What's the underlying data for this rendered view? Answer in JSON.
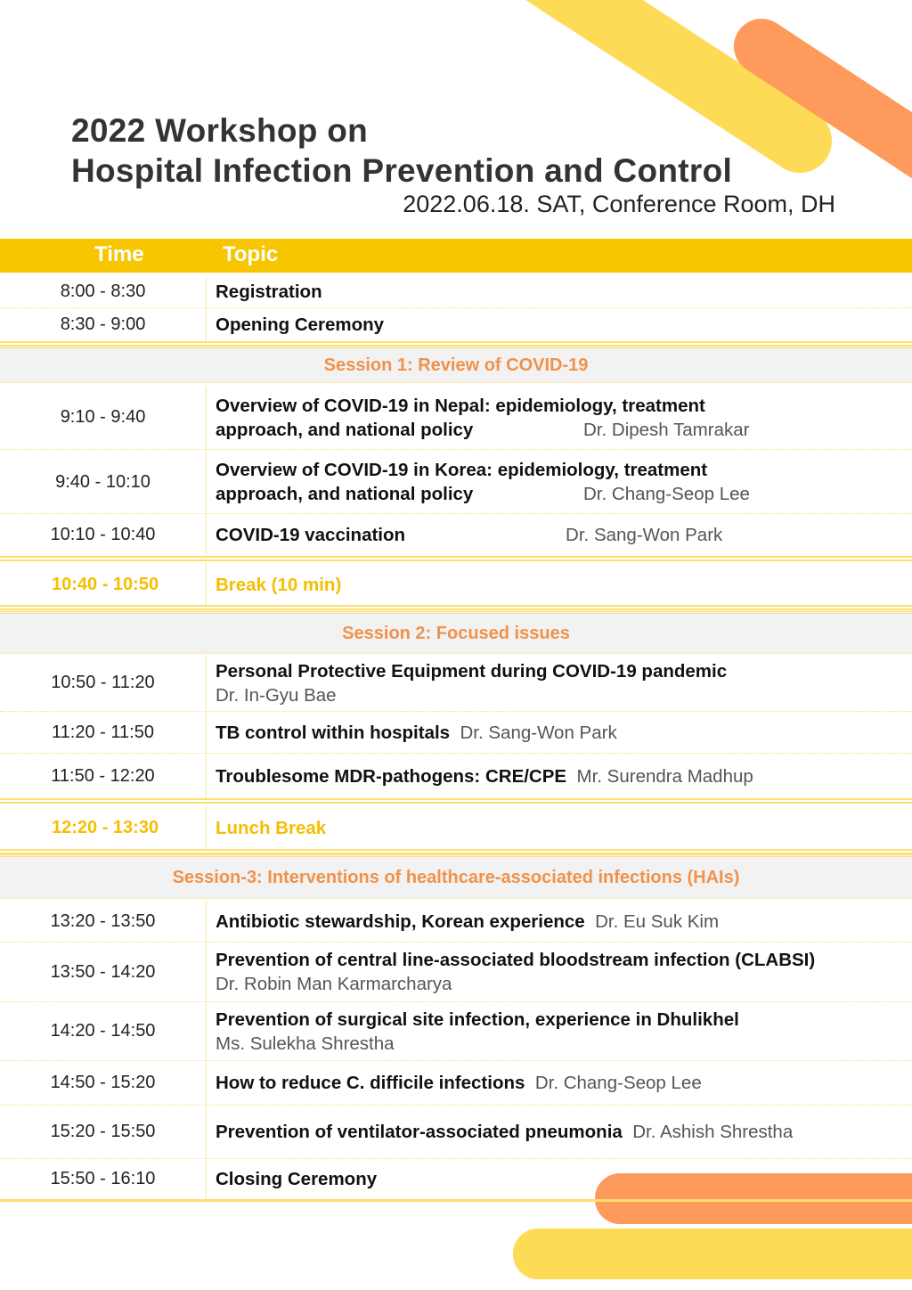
{
  "title": {
    "line1": "2022 Workshop on",
    "line2": "Hospital Infection Prevention and Control",
    "subtitle": "2022.06.18. SAT, Conference Room, DH"
  },
  "header": {
    "time": "Time",
    "topic": "Topic"
  },
  "colors": {
    "header": "#F7C600",
    "session_text": "#F0924A",
    "break_text": "#F5BE00",
    "deco_yellow": "#FEDB56",
    "deco_orange": "#FE9A5C"
  },
  "rows": [
    {
      "time": "8:00 - 8:30",
      "title": "Registration"
    },
    {
      "time": "8:30 - 9:00",
      "title": "Opening Ceremony"
    },
    {
      "session": "Session 1: Review of COVID-19"
    },
    {
      "time": "9:10 - 9:40",
      "title": "Overview of COVID-19 in Nepal: epidemiology, treatment",
      "title2": "approach, and national policy",
      "speaker": "Dr. Dipesh Tamrakar"
    },
    {
      "time": "9:40 - 10:10",
      "title": "Overview of COVID-19 in Korea: epidemiology, treatment",
      "title2": "approach, and national policy",
      "speaker": "Dr. Chang-Seop Lee"
    },
    {
      "time": "10:10 - 10:40",
      "title": "COVID-19 vaccination",
      "speaker": "Dr. Sang-Won Park"
    },
    {
      "time": "10:40 - 10:50",
      "title": "Break (10 min)",
      "break": true
    },
    {
      "session": "Session 2: Focused issues"
    },
    {
      "time": "10:50 - 11:20",
      "title": "Personal Protective Equipment during COVID-19 pandemic",
      "speaker": "Dr. In-Gyu Bae"
    },
    {
      "time": "11:20 - 11:50",
      "title": "TB control within hospitals",
      "speaker": "Dr. Sang-Won Park"
    },
    {
      "time": "11:50 - 12:20",
      "title": "Troublesome MDR-pathogens: CRE/CPE",
      "speaker": "Mr. Surendra Madhup"
    },
    {
      "time": "12:20 - 13:30",
      "title": "Lunch Break",
      "break": true
    },
    {
      "session": "Session-3: Interventions of healthcare-associated infections (HAIs)"
    },
    {
      "time": "13:20 - 13:50",
      "title": "Antibiotic stewardship, Korean experience",
      "speaker": "Dr. Eu Suk Kim"
    },
    {
      "time": "13:50 - 14:20",
      "title": "Prevention of central line-associated bloodstream infection (CLABSI)",
      "speaker": "Dr. Robin Man Karmarcharya"
    },
    {
      "time": "14:20 - 14:50",
      "title": "Prevention of surgical site infection, experience in Dhulikhel",
      "speaker": "Ms. Sulekha Shrestha"
    },
    {
      "time": "14:50 - 15:20",
      "title": "How to reduce C. difficile infections",
      "speaker": "Dr. Chang-Seop Lee"
    },
    {
      "time": "15:20 - 15:50",
      "title": "Prevention of ventilator-associated pneumonia",
      "speaker": "Dr. Ashish Shrestha"
    },
    {
      "time": "15:50 - 16:10",
      "title": "Closing Ceremony"
    }
  ]
}
